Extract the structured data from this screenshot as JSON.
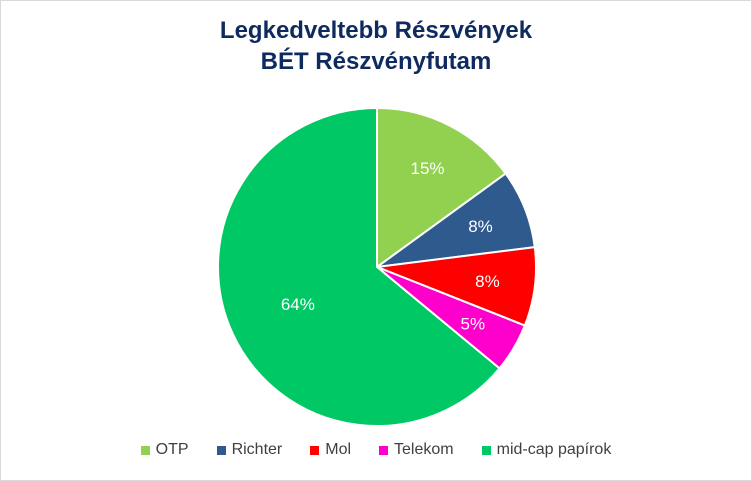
{
  "chart_data": {
    "type": "pie",
    "title_lines": [
      "Legkedveltebb Részvények",
      "BÉT Részvényfutam"
    ],
    "categories": [
      "OTP",
      "Richter",
      "Mol",
      "Telekom",
      "mid-cap papírok"
    ],
    "values": [
      15,
      8,
      8,
      5,
      64
    ],
    "labels": [
      "15%",
      "8%",
      "8%",
      "5%",
      "64%"
    ],
    "colors": [
      "#92d050",
      "#2e5a8e",
      "#ff0000",
      "#ff00cc",
      "#00c864"
    ],
    "label_color": "#ffffff",
    "legend_position": "bottom",
    "start_angle": "12 o'clock, clockwise"
  }
}
